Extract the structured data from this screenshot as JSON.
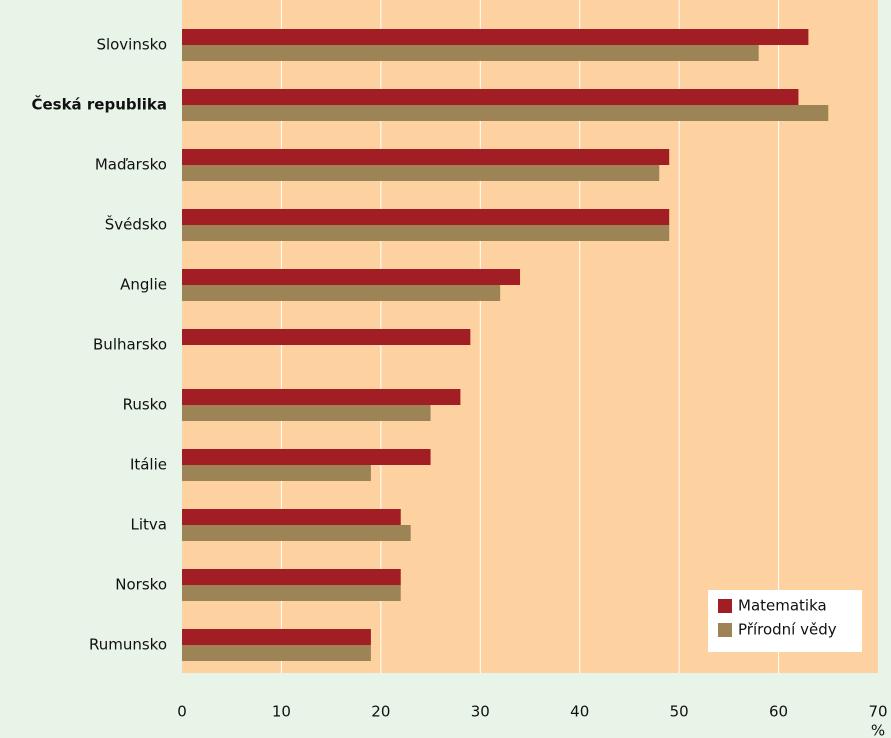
{
  "chart_data": {
    "type": "hbar",
    "categories": [
      "Slovinsko",
      "Česká republika",
      "Maďarsko",
      "Švédsko",
      "Anglie",
      "Bulharsko",
      "Rusko",
      "Itálie",
      "Litva",
      "Norsko",
      "Rumunsko"
    ],
    "highlight_index": 1,
    "series": [
      {
        "name": "Matematika",
        "color": "#a11f24",
        "values": [
          63,
          62,
          49,
          49,
          34,
          29,
          28,
          25,
          22,
          22,
          19
        ]
      },
      {
        "name": "Přírodní vědy",
        "color": "#9c8457",
        "values": [
          58,
          65,
          48,
          49,
          32,
          null,
          25,
          19,
          23,
          22,
          19
        ]
      }
    ],
    "xlim": [
      0,
      70
    ],
    "xticks": [
      0,
      10,
      20,
      30,
      40,
      50,
      60,
      70
    ],
    "x_unit": "%",
    "grid": true,
    "legend": "lower right"
  }
}
